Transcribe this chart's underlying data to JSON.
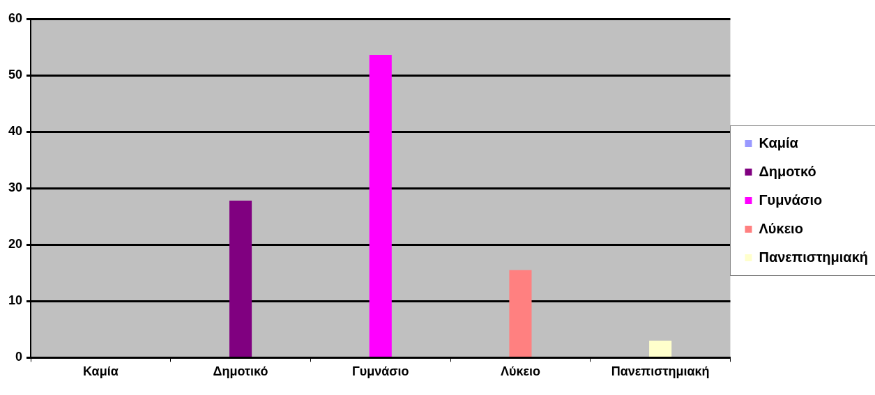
{
  "chart_data": {
    "type": "bar",
    "categories": [
      "Καμία",
      "Δημοτικό",
      "Γυμνάσιο",
      "Λύκειο",
      "Πανεπιστημιακή"
    ],
    "series": [
      {
        "name": "Καμία",
        "color": "#9999ff",
        "values": [
          0,
          null,
          null,
          null,
          null
        ]
      },
      {
        "name": "Δημοτκό",
        "color": "#800080",
        "values": [
          null,
          27.8,
          null,
          null,
          null
        ]
      },
      {
        "name": "Γυμνάσιο",
        "color": "#ff00ff",
        "values": [
          null,
          null,
          53.6,
          null,
          null
        ]
      },
      {
        "name": "Λύκειο",
        "color": "#ff8080",
        "values": [
          null,
          null,
          null,
          15.5,
          null
        ]
      },
      {
        "name": "Πανεπιστημιακή",
        "color": "#ffffcc",
        "values": [
          null,
          null,
          null,
          null,
          3.0
        ]
      }
    ],
    "ylim": [
      0,
      60
    ],
    "yticks": [
      0,
      10,
      20,
      30,
      40,
      50,
      60
    ],
    "grid": "y",
    "legend": "right"
  }
}
